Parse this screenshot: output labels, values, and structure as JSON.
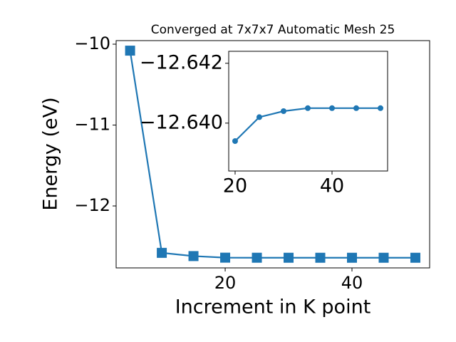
{
  "chart_data": [
    {
      "type": "line",
      "title": "Converged at 7x7x7 Automatic Mesh 25",
      "x_label": "Increment in K point",
      "y_label": "Energy (eV)",
      "x": [
        5,
        10,
        15,
        20,
        25,
        30,
        35,
        40,
        45,
        50
      ],
      "series": [
        {
          "color": "#1f77b4",
          "marker": "square",
          "values": [
            -10.08,
            -12.58,
            -12.62,
            -12.6394,
            -12.6402,
            -12.6404,
            -12.6405,
            -12.6405,
            -12.6405,
            -12.6405
          ]
        }
      ],
      "xlim": [
        2.8,
        52.25
      ],
      "ylim": [
        -12.766,
        -9.956
      ],
      "xticks": [
        20,
        40
      ],
      "yticks": [
        {
          "value": -12,
          "label": "−12"
        },
        {
          "value": -11,
          "label": "−11"
        },
        {
          "value": -10,
          "label": "−10"
        }
      ]
    },
    {
      "type": "line",
      "x": [
        20,
        25,
        30,
        35,
        40,
        45,
        50
      ],
      "series": [
        {
          "color": "#1f77b4",
          "marker": "circle",
          "values": [
            -12.6394,
            -12.6402,
            -12.6404,
            -12.6405,
            -12.6405,
            -12.6405,
            -12.6405
          ]
        }
      ],
      "xlim": [
        18.68,
        51.47
      ],
      "ylim": [
        -12.6384,
        -12.6424
      ],
      "xticks": [
        20,
        40
      ],
      "yticks": [
        {
          "value": -12.642,
          "label": "−12.642"
        },
        {
          "value": -12.64,
          "label": "−12.640"
        }
      ]
    }
  ]
}
